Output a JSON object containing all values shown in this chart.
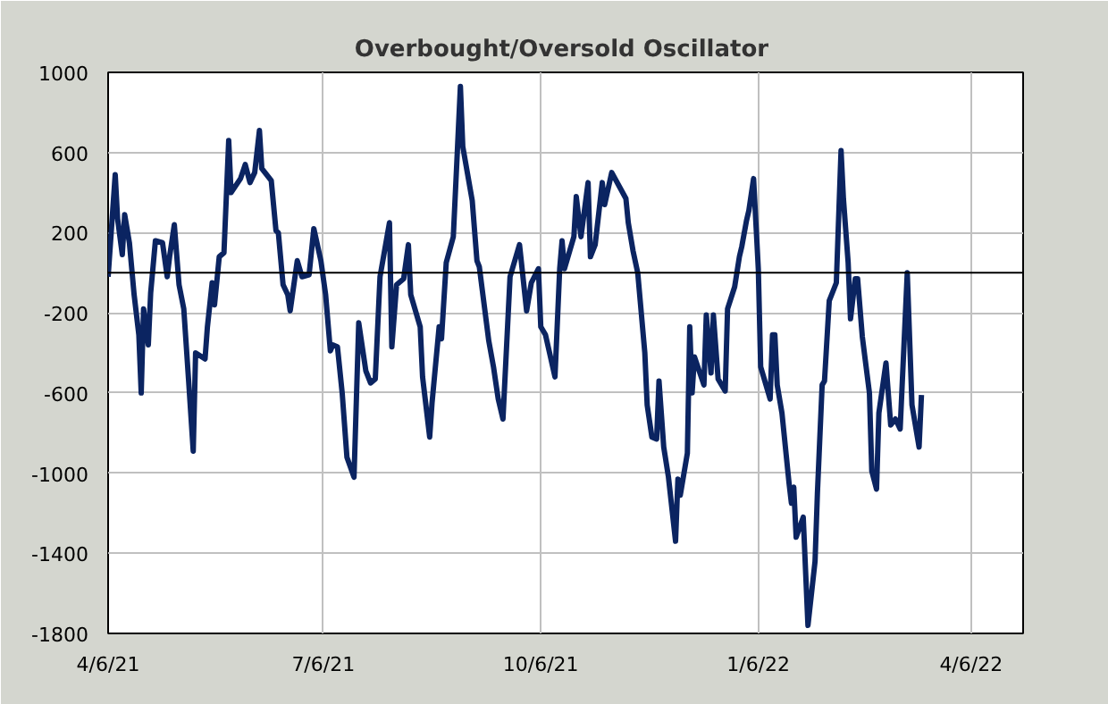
{
  "chart_data": {
    "type": "line",
    "title": "Overbought/Oversold  Oscillator",
    "x": [
      "2021-04-06",
      "2021-04-09",
      "2021-04-10",
      "2021-04-12",
      "2021-04-13",
      "2021-04-15",
      "2021-04-17",
      "2021-04-19",
      "2021-04-20",
      "2021-04-21",
      "2021-04-23",
      "2021-04-24",
      "2021-04-26",
      "2021-04-29",
      "2021-05-01",
      "2021-05-02",
      "2021-05-04",
      "2021-05-06",
      "2021-05-08",
      "2021-05-10",
      "2021-05-12",
      "2021-05-13",
      "2021-05-17",
      "2021-05-18",
      "2021-05-20",
      "2021-05-21",
      "2021-05-23",
      "2021-05-25",
      "2021-05-27",
      "2021-05-28",
      "2021-06-01",
      "2021-06-03",
      "2021-06-05",
      "2021-06-07",
      "2021-06-09",
      "2021-06-10",
      "2021-06-14",
      "2021-06-16",
      "2021-06-17",
      "2021-06-19",
      "2021-06-21",
      "2021-06-22",
      "2021-06-25",
      "2021-06-27",
      "2021-06-30",
      "2021-07-02",
      "2021-07-05",
      "2021-07-07",
      "2021-07-09",
      "2021-07-10",
      "2021-07-12",
      "2021-07-14",
      "2021-07-16",
      "2021-07-19",
      "2021-07-21",
      "2021-07-24",
      "2021-07-26",
      "2021-07-28",
      "2021-07-30",
      "2021-08-03",
      "2021-08-04",
      "2021-08-06",
      "2021-08-09",
      "2021-08-11",
      "2021-08-12",
      "2021-08-16",
      "2021-08-17",
      "2021-08-20",
      "2021-08-21",
      "2021-08-24",
      "2021-08-25",
      "2021-08-27",
      "2021-08-30",
      "2021-09-02",
      "2021-09-03",
      "2021-09-07",
      "2021-09-09",
      "2021-09-10",
      "2021-09-14",
      "2021-09-16",
      "2021-09-18",
      "2021-09-20",
      "2021-09-23",
      "2021-09-27",
      "2021-09-30",
      "2021-10-02",
      "2021-10-05",
      "2021-10-06",
      "2021-10-08",
      "2021-10-12",
      "2021-10-14",
      "2021-10-15",
      "2021-10-16",
      "2021-10-20",
      "2021-10-21",
      "2021-10-23",
      "2021-10-26",
      "2021-10-27",
      "2021-10-29",
      "2021-11-01",
      "2021-11-02",
      "2021-11-05",
      "2021-11-11",
      "2021-11-12",
      "2021-11-14",
      "2021-11-16",
      "2021-11-19",
      "2021-11-20",
      "2021-11-22",
      "2021-11-24",
      "2021-11-25",
      "2021-11-27",
      "2021-11-29",
      "2021-12-02",
      "2021-12-03",
      "2021-12-04",
      "2021-12-07",
      "2021-12-08",
      "2021-12-09",
      "2021-12-10",
      "2021-12-14",
      "2021-12-15",
      "2021-12-17",
      "2021-12-18",
      "2021-12-20",
      "2021-12-23",
      "2021-12-24",
      "2021-12-27",
      "2021-12-29",
      "2021-12-30",
      "2022-01-01",
      "2022-01-02",
      "2022-01-04",
      "2022-01-06",
      "2022-01-07",
      "2022-01-11",
      "2022-01-12",
      "2022-01-13",
      "2022-01-14",
      "2022-01-16",
      "2022-01-19",
      "2022-01-20",
      "2022-01-21",
      "2022-01-22",
      "2022-01-25",
      "2022-01-27",
      "2022-01-30",
      "2022-01-31",
      "2022-02-02",
      "2022-02-03",
      "2022-02-05",
      "2022-02-07",
      "2022-02-08",
      "2022-02-10",
      "2022-02-11",
      "2022-02-13",
      "2022-02-14",
      "2022-02-16",
      "2022-02-17",
      "2022-02-19",
      "2022-02-22",
      "2022-02-23",
      "2022-02-25",
      "2022-02-26",
      "2022-03-01",
      "2022-03-03",
      "2022-03-05",
      "2022-03-07",
      "2022-03-10",
      "2022-03-12",
      "2022-03-15",
      "2022-03-16"
    ],
    "series": [
      {
        "color": "#0b2461",
        "values": [
          -20,
          490,
          270,
          90,
          290,
          150,
          -110,
          -310,
          -600,
          -180,
          -360,
          -100,
          160,
          150,
          -20,
          80,
          240,
          -60,
          -180,
          -530,
          -890,
          -400,
          -430,
          -270,
          -50,
          -160,
          80,
          100,
          660,
          400,
          470,
          540,
          450,
          500,
          710,
          520,
          460,
          210,
          200,
          -60,
          -110,
          -190,
          60,
          -20,
          -10,
          220,
          60,
          -110,
          -390,
          -360,
          -370,
          -600,
          -920,
          -1020,
          -250,
          -490,
          -550,
          -530,
          -20,
          250,
          -370,
          -60,
          -30,
          140,
          -110,
          -270,
          -520,
          -820,
          -650,
          -270,
          -330,
          50,
          180,
          930,
          630,
          360,
          60,
          30,
          -340,
          -470,
          -630,
          -730,
          -20,
          140,
          -190,
          -50,
          20,
          -270,
          -310,
          -520,
          20,
          160,
          20,
          180,
          380,
          180,
          450,
          80,
          140,
          450,
          340,
          500,
          370,
          250,
          110,
          0,
          -400,
          -660,
          -820,
          -830,
          -540,
          -870,
          -1020,
          -1340,
          -1030,
          -1110,
          -900,
          -270,
          -600,
          -420,
          -560,
          -210,
          -500,
          -210,
          -530,
          -590,
          -180,
          -70,
          80,
          130,
          260,
          310,
          470,
          20,
          -470,
          -630,
          -310,
          -310,
          -560,
          -700,
          -1050,
          -1150,
          -1070,
          -1320,
          -1220,
          -1760,
          -1440,
          -1100,
          -560,
          -540,
          -140,
          -80,
          -50,
          610,
          370,
          50,
          -230,
          -30,
          -30,
          -320,
          -600,
          -990,
          -1080,
          -700,
          -450,
          -760,
          -730,
          -780,
          0,
          -660,
          -870,
          -610
        ]
      }
    ],
    "xlim": [
      "2021-04-06",
      "2022-04-28"
    ],
    "xticks": [
      {
        "value": "2021-04-06",
        "label": "4/6/21"
      },
      {
        "value": "2021-07-06",
        "label": "7/6/21"
      },
      {
        "value": "2021-10-06",
        "label": "10/6/21"
      },
      {
        "value": "2022-01-06",
        "label": "1/6/22"
      },
      {
        "value": "2022-04-06",
        "label": "4/6/22"
      }
    ],
    "ylim": [
      -1800,
      1000
    ],
    "yticks": [
      -1800,
      -1400,
      -1000,
      -600,
      -200,
      200,
      600,
      1000
    ],
    "ref_lines": [
      {
        "axis": "y",
        "value": 0,
        "color": "#000000"
      }
    ],
    "grid": true,
    "line_style": "solid"
  }
}
